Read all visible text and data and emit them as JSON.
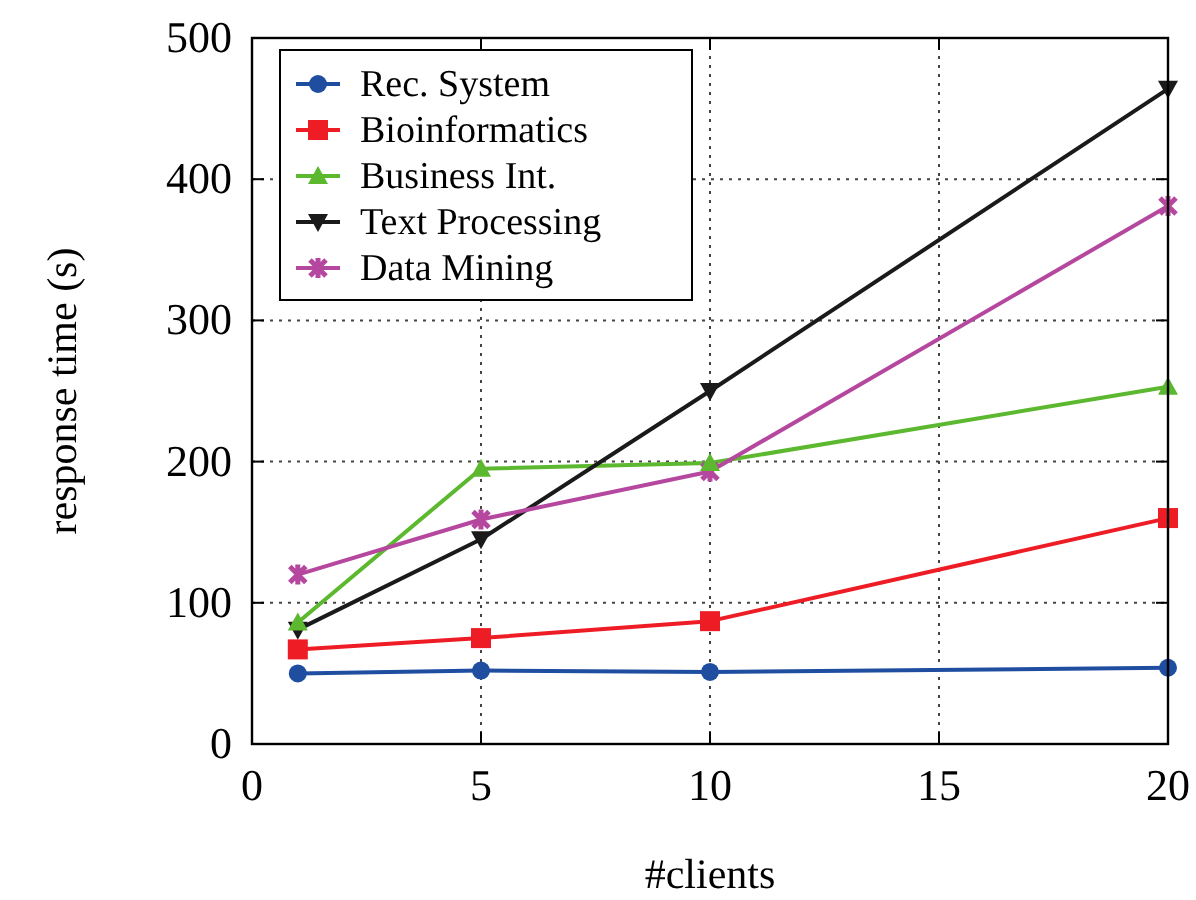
{
  "chart_data": {
    "type": "line",
    "xlabel": "#clients",
    "ylabel": "response time (s)",
    "x": [
      1,
      5,
      10,
      20
    ],
    "xlim": [
      0,
      20
    ],
    "xticks": [
      0,
      5,
      10,
      15,
      20
    ],
    "ylim": [
      0,
      500
    ],
    "yticks": [
      0,
      100,
      200,
      300,
      400,
      500
    ],
    "grid": true,
    "legend": "top left",
    "line_style": "solid",
    "series": [
      {
        "name": "Rec. System",
        "color": "#1f4ea1",
        "marker": "circle",
        "values": [
          50,
          52,
          51,
          54
        ]
      },
      {
        "name": "Bioinformatics",
        "color": "#ee1c25",
        "marker": "square",
        "values": [
          67,
          75,
          87,
          160
        ]
      },
      {
        "name": "Business Int.",
        "color": "#5cb82e",
        "marker": "triangle",
        "values": [
          86,
          195,
          199,
          253
        ]
      },
      {
        "name": "Text Processing",
        "color": "#1a1a1a",
        "marker": "triangle-down",
        "values": [
          81,
          145,
          250,
          464
        ]
      },
      {
        "name": "Data Mining",
        "color": "#b6479e",
        "marker": "cross",
        "values": [
          120,
          159,
          193,
          381
        ]
      }
    ]
  }
}
